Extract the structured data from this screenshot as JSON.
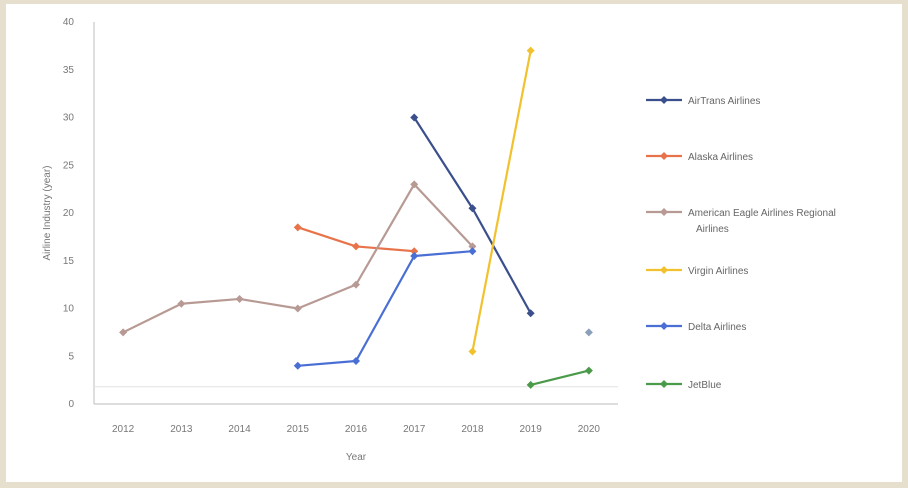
{
  "chart_data": {
    "type": "line",
    "xlabel": "Year",
    "ylabel": "Airline Industry (year)",
    "categories": [
      "2012",
      "2013",
      "2014",
      "2015",
      "2016",
      "2017",
      "2018",
      "2019",
      "2020"
    ],
    "ylim": [
      0,
      40
    ],
    "yticks": [
      0,
      5,
      10,
      15,
      20,
      25,
      30,
      35,
      40
    ],
    "grid": false,
    "legend_position": "right",
    "series": [
      {
        "name": "AirTrans Airlines",
        "color": "#3b4f8c",
        "marker": "diamond",
        "values": [
          null,
          null,
          null,
          null,
          null,
          30,
          20.5,
          9.5,
          null
        ]
      },
      {
        "name": "Alaska Airlines",
        "color": "#e8734a",
        "marker": "diamond",
        "values": [
          null,
          null,
          null,
          18.5,
          16.5,
          16,
          null,
          null,
          null
        ]
      },
      {
        "name": "American Eagle Airlines Regional Airlines",
        "color": "#b89a94",
        "marker": "diamond",
        "values": [
          7.5,
          10.5,
          11,
          10,
          12.5,
          23,
          16.5,
          null,
          null
        ]
      },
      {
        "name": "Virgin Airlines",
        "color": "#f2c12e",
        "marker": "diamond",
        "values": [
          null,
          null,
          null,
          null,
          null,
          null,
          5.5,
          37,
          null
        ]
      },
      {
        "name": "Delta Airlines",
        "color": "#4a6fd4",
        "marker": "diamond",
        "values": [
          null,
          null,
          null,
          4,
          4.5,
          15.5,
          16,
          null,
          null
        ]
      },
      {
        "name": "JetBlue",
        "color": "#4a9a4a",
        "marker": "diamond",
        "values": [
          null,
          null,
          null,
          null,
          null,
          null,
          null,
          2,
          3.5
        ]
      }
    ],
    "annotations": [
      {
        "x": "2020",
        "y": 7.5,
        "color": "#8aa0b8"
      }
    ]
  }
}
